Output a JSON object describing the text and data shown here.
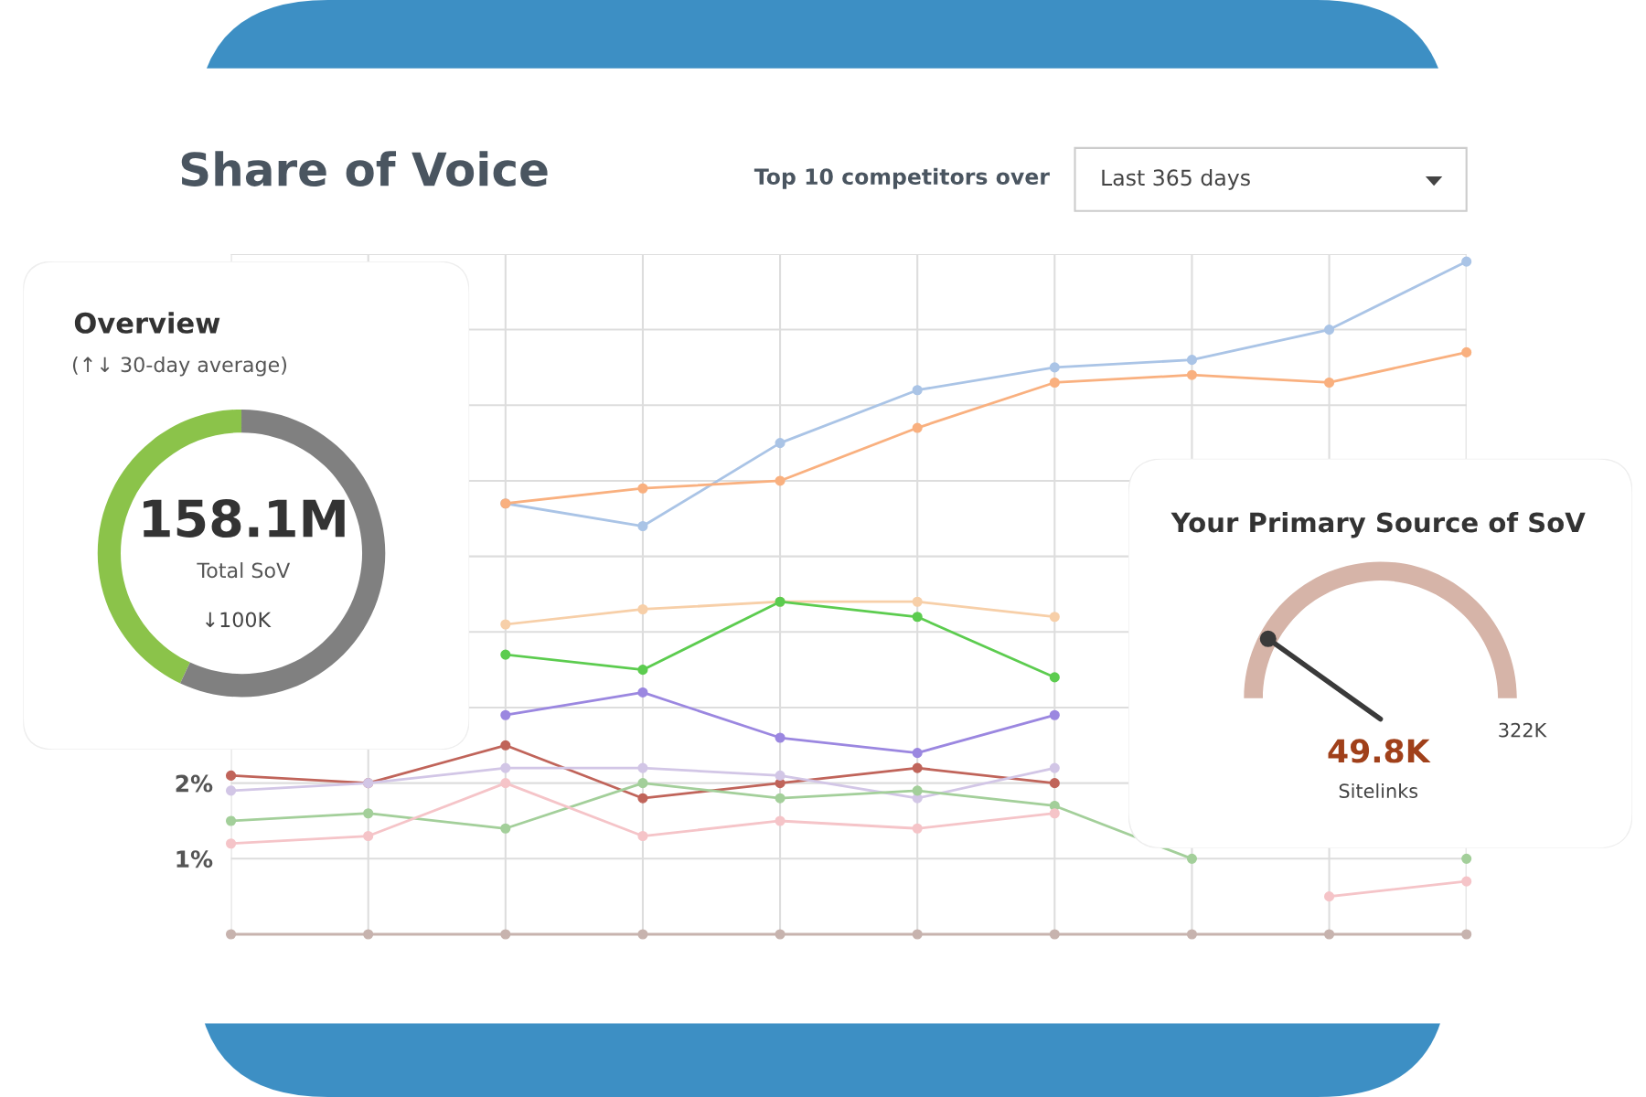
{
  "chart_data": [
    {
      "type": "line",
      "title": "Share of Voice",
      "annotations": [
        "Top 10 competitors over",
        "Last 365 days"
      ],
      "categories": [
        null,
        null,
        null,
        null,
        null,
        null,
        null,
        null,
        null,
        null
      ],
      "series": [
        {
          "color": "#aac4e6",
          "values": [
            null,
            null,
            5.7,
            5.4,
            6.5,
            7.2,
            7.5,
            7.6,
            8.0,
            8.9
          ]
        },
        {
          "color": "#f9b07f",
          "values": [
            null,
            null,
            5.7,
            5.9,
            6.0,
            6.7,
            7.3,
            7.4,
            7.3,
            7.7
          ]
        },
        {
          "color": "#f7cfa8",
          "values": [
            null,
            null,
            4.1,
            4.3,
            4.4,
            4.4,
            4.2,
            null,
            null,
            null
          ]
        },
        {
          "color": "#5ccc4f",
          "values": [
            null,
            null,
            3.7,
            3.5,
            4.4,
            4.2,
            3.4,
            null,
            null,
            null
          ]
        },
        {
          "color": "#9b87e0",
          "values": [
            null,
            null,
            2.9,
            3.2,
            2.6,
            2.4,
            2.9,
            null,
            null,
            null
          ]
        },
        {
          "color": "#c0645a",
          "values": [
            2.1,
            2.0,
            2.5,
            1.8,
            2.0,
            2.2,
            2.0,
            null,
            null,
            null
          ]
        },
        {
          "color": "#d2c6e6",
          "values": [
            1.9,
            2.0,
            2.2,
            2.2,
            2.1,
            1.8,
            2.2,
            null,
            null,
            null
          ]
        },
        {
          "color": "#a3cf9a",
          "values": [
            1.5,
            1.6,
            1.4,
            2.0,
            1.8,
            1.9,
            1.7,
            1.0,
            null,
            1.0
          ]
        },
        {
          "color": "#f5c4c8",
          "values": [
            1.2,
            1.3,
            2.0,
            1.3,
            1.5,
            1.4,
            1.6,
            null,
            0.5,
            0.7
          ]
        },
        {
          "color": "#c7b3ae",
          "values": [
            0,
            0,
            0,
            0,
            0,
            0,
            0,
            0,
            0,
            0
          ]
        }
      ],
      "ylim": [
        0,
        9
      ],
      "yticks": [
        {
          "value": 1,
          "label": "1%"
        },
        {
          "value": 2,
          "label": "2%"
        },
        {
          "value": 3,
          "label": null
        },
        {
          "value": 4,
          "label": null
        },
        {
          "value": 5,
          "label": null
        },
        {
          "value": 6,
          "label": null
        },
        {
          "value": 7,
          "label": null
        },
        {
          "value": 8,
          "label": null
        },
        {
          "value": 9,
          "label": null
        }
      ],
      "grid": true,
      "marker": "circle",
      "tick_labels": "y"
    },
    {
      "type": "donut",
      "title": "Overview",
      "subtitle": "(↑↓ 30-day average)",
      "categories": [
        null,
        null
      ],
      "values": [
        43,
        57
      ],
      "colors": [
        "#8bc34a",
        "#808080"
      ],
      "annotations": [
        "158.1M",
        "Total SoV",
        "↓100K"
      ]
    },
    {
      "type": "other",
      "title": "Your Primary Source of SoV",
      "values": [
        49.8,
        322
      ],
      "colors": [
        "#3a3a3a",
        "#d6b4a8"
      ],
      "value_labels": [
        "49.8K",
        "322K"
      ],
      "annotations": [
        "Sitelinks"
      ]
    }
  ]
}
